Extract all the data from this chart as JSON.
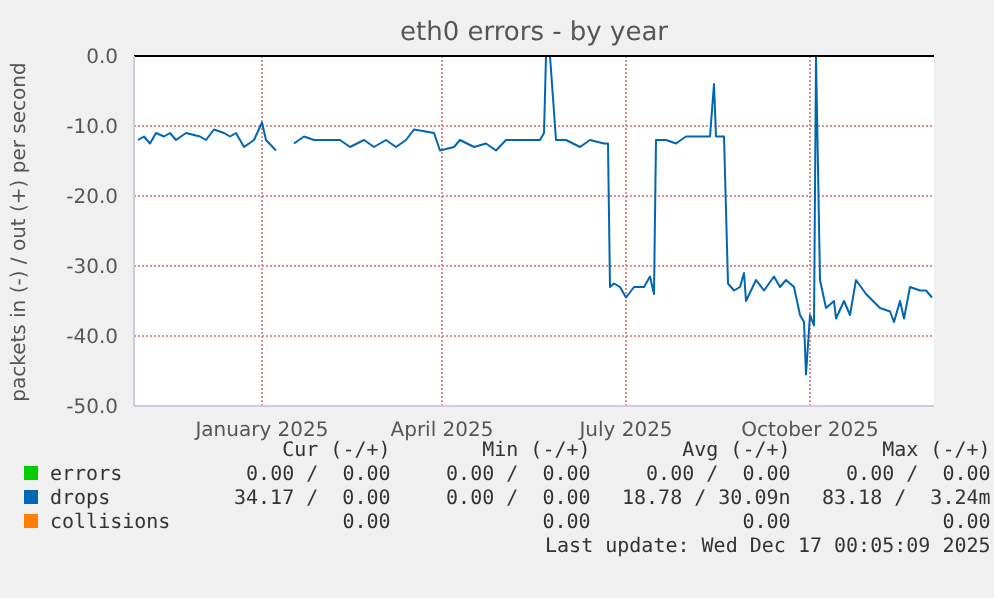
{
  "chart_data": {
    "type": "line",
    "title": "eth0 errors - by year",
    "ylabel": "packets in (-) / out (+) per second",
    "x": [
      "2024-11-14",
      "2024-11-17",
      "2024-11-20",
      "2024-11-23",
      "2024-11-27",
      "2024-11-30",
      "2024-12-03",
      "2024-12-08",
      "2024-12-15",
      "2024-12-18",
      "2024-12-22",
      "2024-12-27",
      "2024-12-30",
      "2025-01-02",
      "2025-01-06",
      "2025-01-11",
      "2025-01-15",
      "2025-01-17",
      "2025-01-22",
      "2025-01-26",
      "2025-01-31",
      "2025-02-05",
      "2025-02-10",
      "2025-02-16",
      "2025-02-23",
      "2025-02-28",
      "2025-03-07",
      "2025-03-12",
      "2025-03-18",
      "2025-03-23",
      "2025-03-28",
      "2025-04-01",
      "2025-04-11",
      "2025-04-14",
      "2025-04-21",
      "2025-04-24",
      "2025-05-01",
      "2025-05-07",
      "2025-05-12",
      "2025-05-17",
      "2025-05-24",
      "2025-06-03",
      "2025-06-05",
      "2025-06-06",
      "2025-06-08",
      "2025-06-11",
      "2025-06-16",
      "2025-06-23",
      "2025-06-28",
      "2025-07-05",
      "2025-07-07",
      "2025-07-08",
      "2025-07-10",
      "2025-07-13",
      "2025-07-16",
      "2025-07-20",
      "2025-07-25",
      "2025-07-28",
      "2025-07-30",
      "2025-07-31",
      "2025-08-05",
      "2025-08-10",
      "2025-08-15",
      "2025-08-20",
      "2025-08-27",
      "2025-08-29",
      "2025-08-30",
      "2025-09-03",
      "2025-09-05",
      "2025-09-08",
      "2025-09-11",
      "2025-09-13",
      "2025-09-14",
      "2025-09-19",
      "2025-09-23",
      "2025-09-28",
      "2025-10-01",
      "2025-10-04",
      "2025-10-08",
      "2025-10-11",
      "2025-10-13",
      "2025-10-14",
      "2025-10-16",
      "2025-10-18",
      "2025-10-19",
      "2025-10-21",
      "2025-10-24",
      "2025-10-28",
      "2025-10-29",
      "2025-11-02",
      "2025-11-05",
      "2025-11-08",
      "2025-11-13",
      "2025-11-20",
      "2025-11-25",
      "2025-11-27",
      "2025-11-30",
      "2025-12-02",
      "2025-12-05",
      "2025-12-10",
      "2025-12-13",
      "2025-12-16"
    ],
    "series": [
      {
        "name": "errors",
        "color": "#00cc00",
        "values": [
          null,
          null,
          null,
          null,
          null,
          null,
          null,
          null,
          null,
          null,
          null,
          null,
          null,
          null,
          null,
          null,
          null,
          null,
          null,
          null,
          null,
          null,
          null,
          null,
          null,
          null,
          null,
          null,
          null,
          null,
          null,
          null,
          null,
          null,
          null,
          null,
          null,
          null,
          null,
          null,
          null,
          null,
          null,
          null,
          null,
          null,
          null,
          null,
          null,
          null,
          null,
          null,
          null,
          null,
          null,
          null,
          null,
          null,
          null,
          null,
          null,
          null,
          null,
          null,
          null,
          null,
          null,
          null,
          null,
          null,
          null,
          null,
          null,
          null,
          null,
          null,
          null,
          null,
          null,
          null,
          null,
          null,
          null,
          null,
          null,
          null,
          null,
          null,
          null,
          null,
          null,
          null,
          null,
          null,
          null,
          null,
          null,
          null,
          null,
          null,
          null,
          null
        ]
      },
      {
        "name": "drops",
        "color": "#0066b3",
        "values": [
          -12,
          -11.5,
          -12.5,
          -11,
          -11.5,
          -11,
          -12,
          -11,
          -11.5,
          -12,
          -10.5,
          -11,
          -11.5,
          -11,
          -13,
          -12,
          -9.5,
          -12,
          -13.5,
          null,
          -12.5,
          -11.5,
          -12,
          -12,
          -12,
          -13,
          -12,
          -13,
          -12,
          -13,
          -12,
          -10.5,
          -11,
          -13.5,
          -13,
          -12,
          -13,
          -12.5,
          -13.5,
          -12,
          -12,
          -12,
          -11,
          0,
          0,
          -12,
          -12,
          -13,
          -12,
          -12.5,
          -12.5,
          -33,
          -32.5,
          -33,
          -34.5,
          -33,
          -33,
          -31.5,
          -34,
          -12,
          -12,
          -12.5,
          -11.5,
          -11.5,
          -11.5,
          -4,
          -11.5,
          -11.5,
          -32.5,
          -33.5,
          -33,
          -31,
          -35,
          -32,
          -33.5,
          -31.5,
          -33,
          -32,
          -33,
          -37,
          -38,
          -45.5,
          -37,
          -38.5,
          0,
          -32,
          -36,
          -35,
          -37.5,
          -35,
          -37,
          -32,
          -34,
          -36,
          -36.5,
          -38,
          -35,
          -37.5,
          -33,
          -33.5,
          -33.5,
          -34.5
        ]
      },
      {
        "name": "collisions",
        "color": "#ff8000",
        "values": [
          null,
          null,
          null,
          null,
          null,
          null,
          null,
          null,
          null,
          null,
          null,
          null,
          null,
          null,
          null,
          null,
          null,
          null,
          null,
          null,
          null,
          null,
          null,
          null,
          null,
          null,
          null,
          null,
          null,
          null,
          null,
          null,
          null,
          null,
          null,
          null,
          null,
          null,
          null,
          null,
          null,
          null,
          null,
          null,
          null,
          null,
          null,
          null,
          null,
          null,
          null,
          null,
          null,
          null,
          null,
          null,
          null,
          null,
          null,
          null,
          null,
          null,
          null,
          null,
          null,
          null,
          null,
          null,
          null,
          null,
          null,
          null,
          null,
          null,
          null,
          null,
          null,
          null,
          null,
          null,
          null,
          null,
          null,
          null,
          null,
          null,
          null,
          null,
          null,
          null,
          null,
          null,
          null,
          null,
          null,
          null,
          null,
          null,
          null,
          null,
          null,
          null
        ]
      }
    ],
    "xlim": [
      "2024-11-12",
      "2025-12-17"
    ],
    "xticks": [
      {
        "value": "2025-01-15",
        "label": "January 2025"
      },
      {
        "value": "2025-04-15",
        "label": "April 2025"
      },
      {
        "value": "2025-07-16",
        "label": "July 2025"
      },
      {
        "value": "2025-10-16",
        "label": "October 2025"
      }
    ],
    "ylim": [
      -50,
      0
    ],
    "yticks": [
      {
        "value": -50,
        "label": "-50.0"
      },
      {
        "value": -40,
        "label": "-40.0"
      },
      {
        "value": -30,
        "label": "-30.0"
      },
      {
        "value": -20,
        "label": "-20.0"
      },
      {
        "value": -10,
        "label": "-10.0"
      },
      {
        "value": 0,
        "label": "0.0"
      }
    ],
    "ref_lines": [
      {
        "axis": "y",
        "value": 0,
        "color": "#000000"
      }
    ],
    "grid": true,
    "legend": "bottom",
    "marker": "none",
    "line_style": "solid",
    "annotations": [
      "Cur (-/+)",
      "Min (-/+)",
      "Avg (-/+)",
      "Max (-/+)",
      "0.00 /  0.00",
      "0.00 /  0.00",
      "0.00 /  0.00",
      "0.00 /  0.00",
      "34.17 /  0.00",
      "0.00 /  0.00",
      "18.78 / 30.09n",
      "83.18 /  3.24m",
      "0.00",
      "0.00",
      "0.00",
      "0.00",
      "Last update: Wed Dec 17 00:05:09 2025"
    ]
  }
}
